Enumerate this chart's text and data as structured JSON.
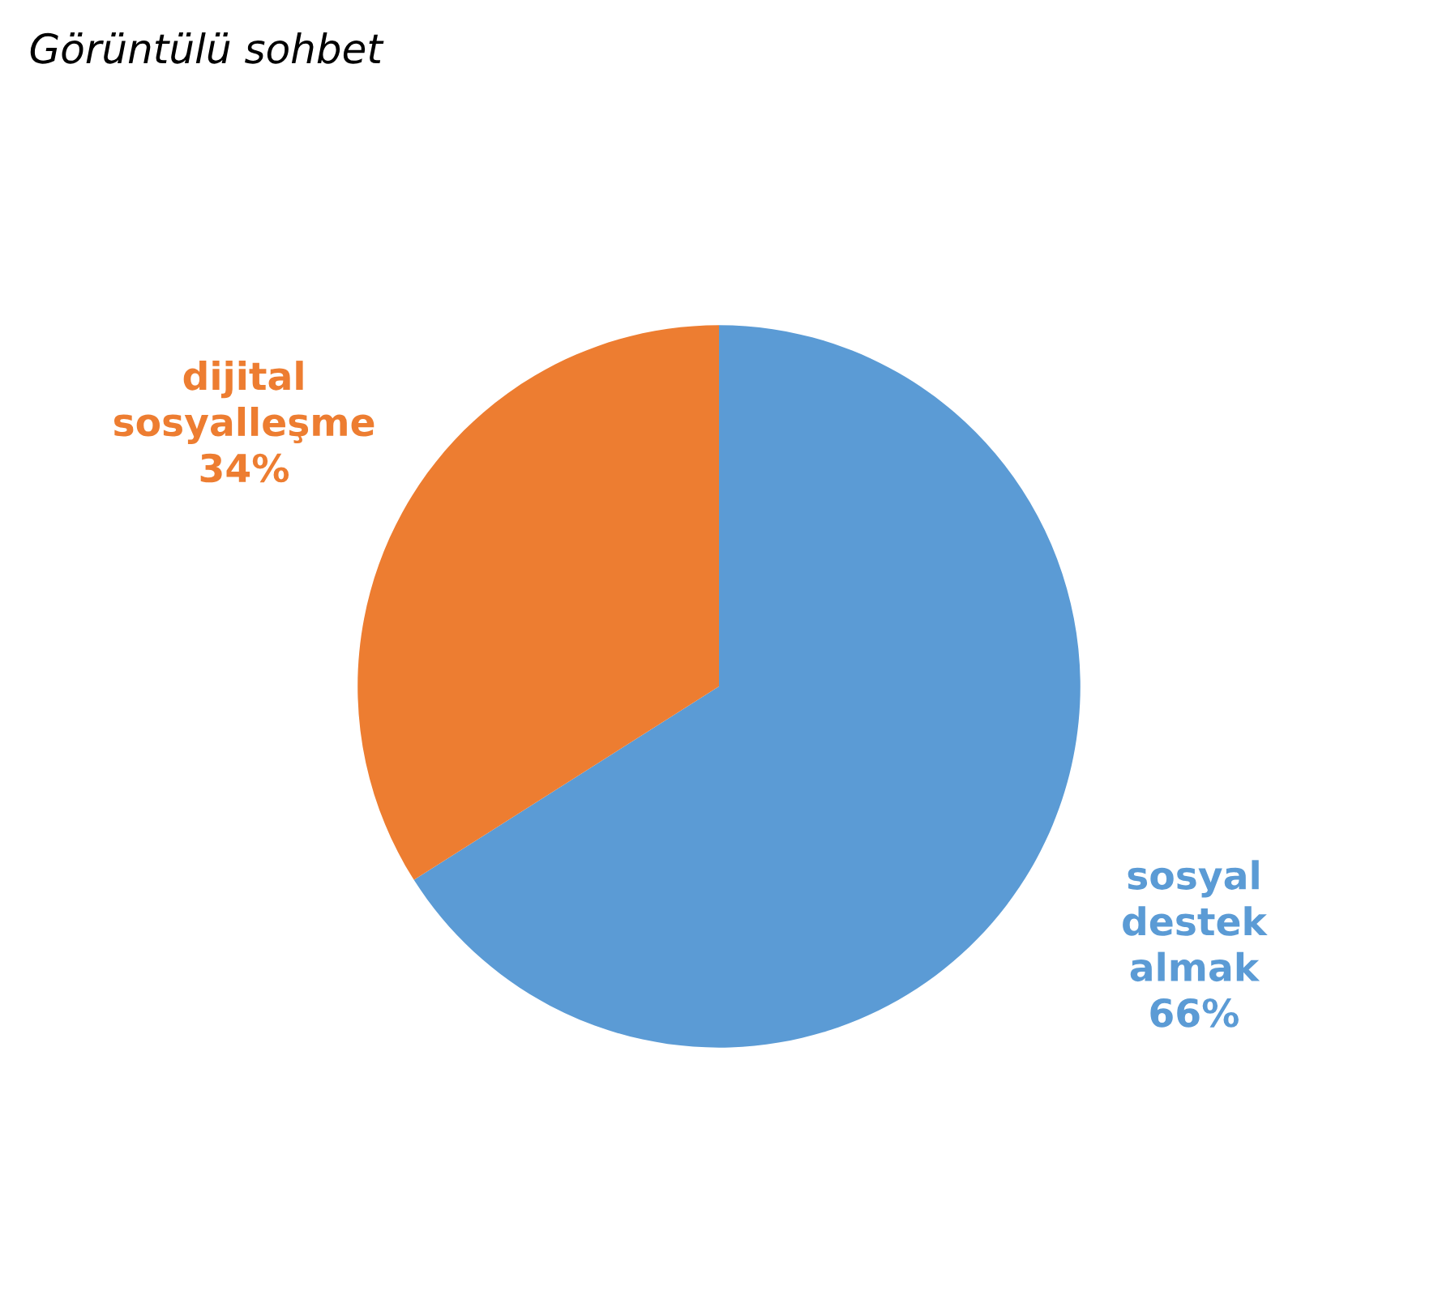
{
  "chart_data": {
    "type": "pie",
    "title": "Görüntülü sohbet",
    "categories": [
      "sosyal destek almak",
      "dijital sosyalleşme"
    ],
    "values": [
      66,
      34
    ],
    "colors": [
      "#5b9bd5",
      "#ed7d31"
    ],
    "value_labels": [
      "66%",
      "34%"
    ]
  }
}
